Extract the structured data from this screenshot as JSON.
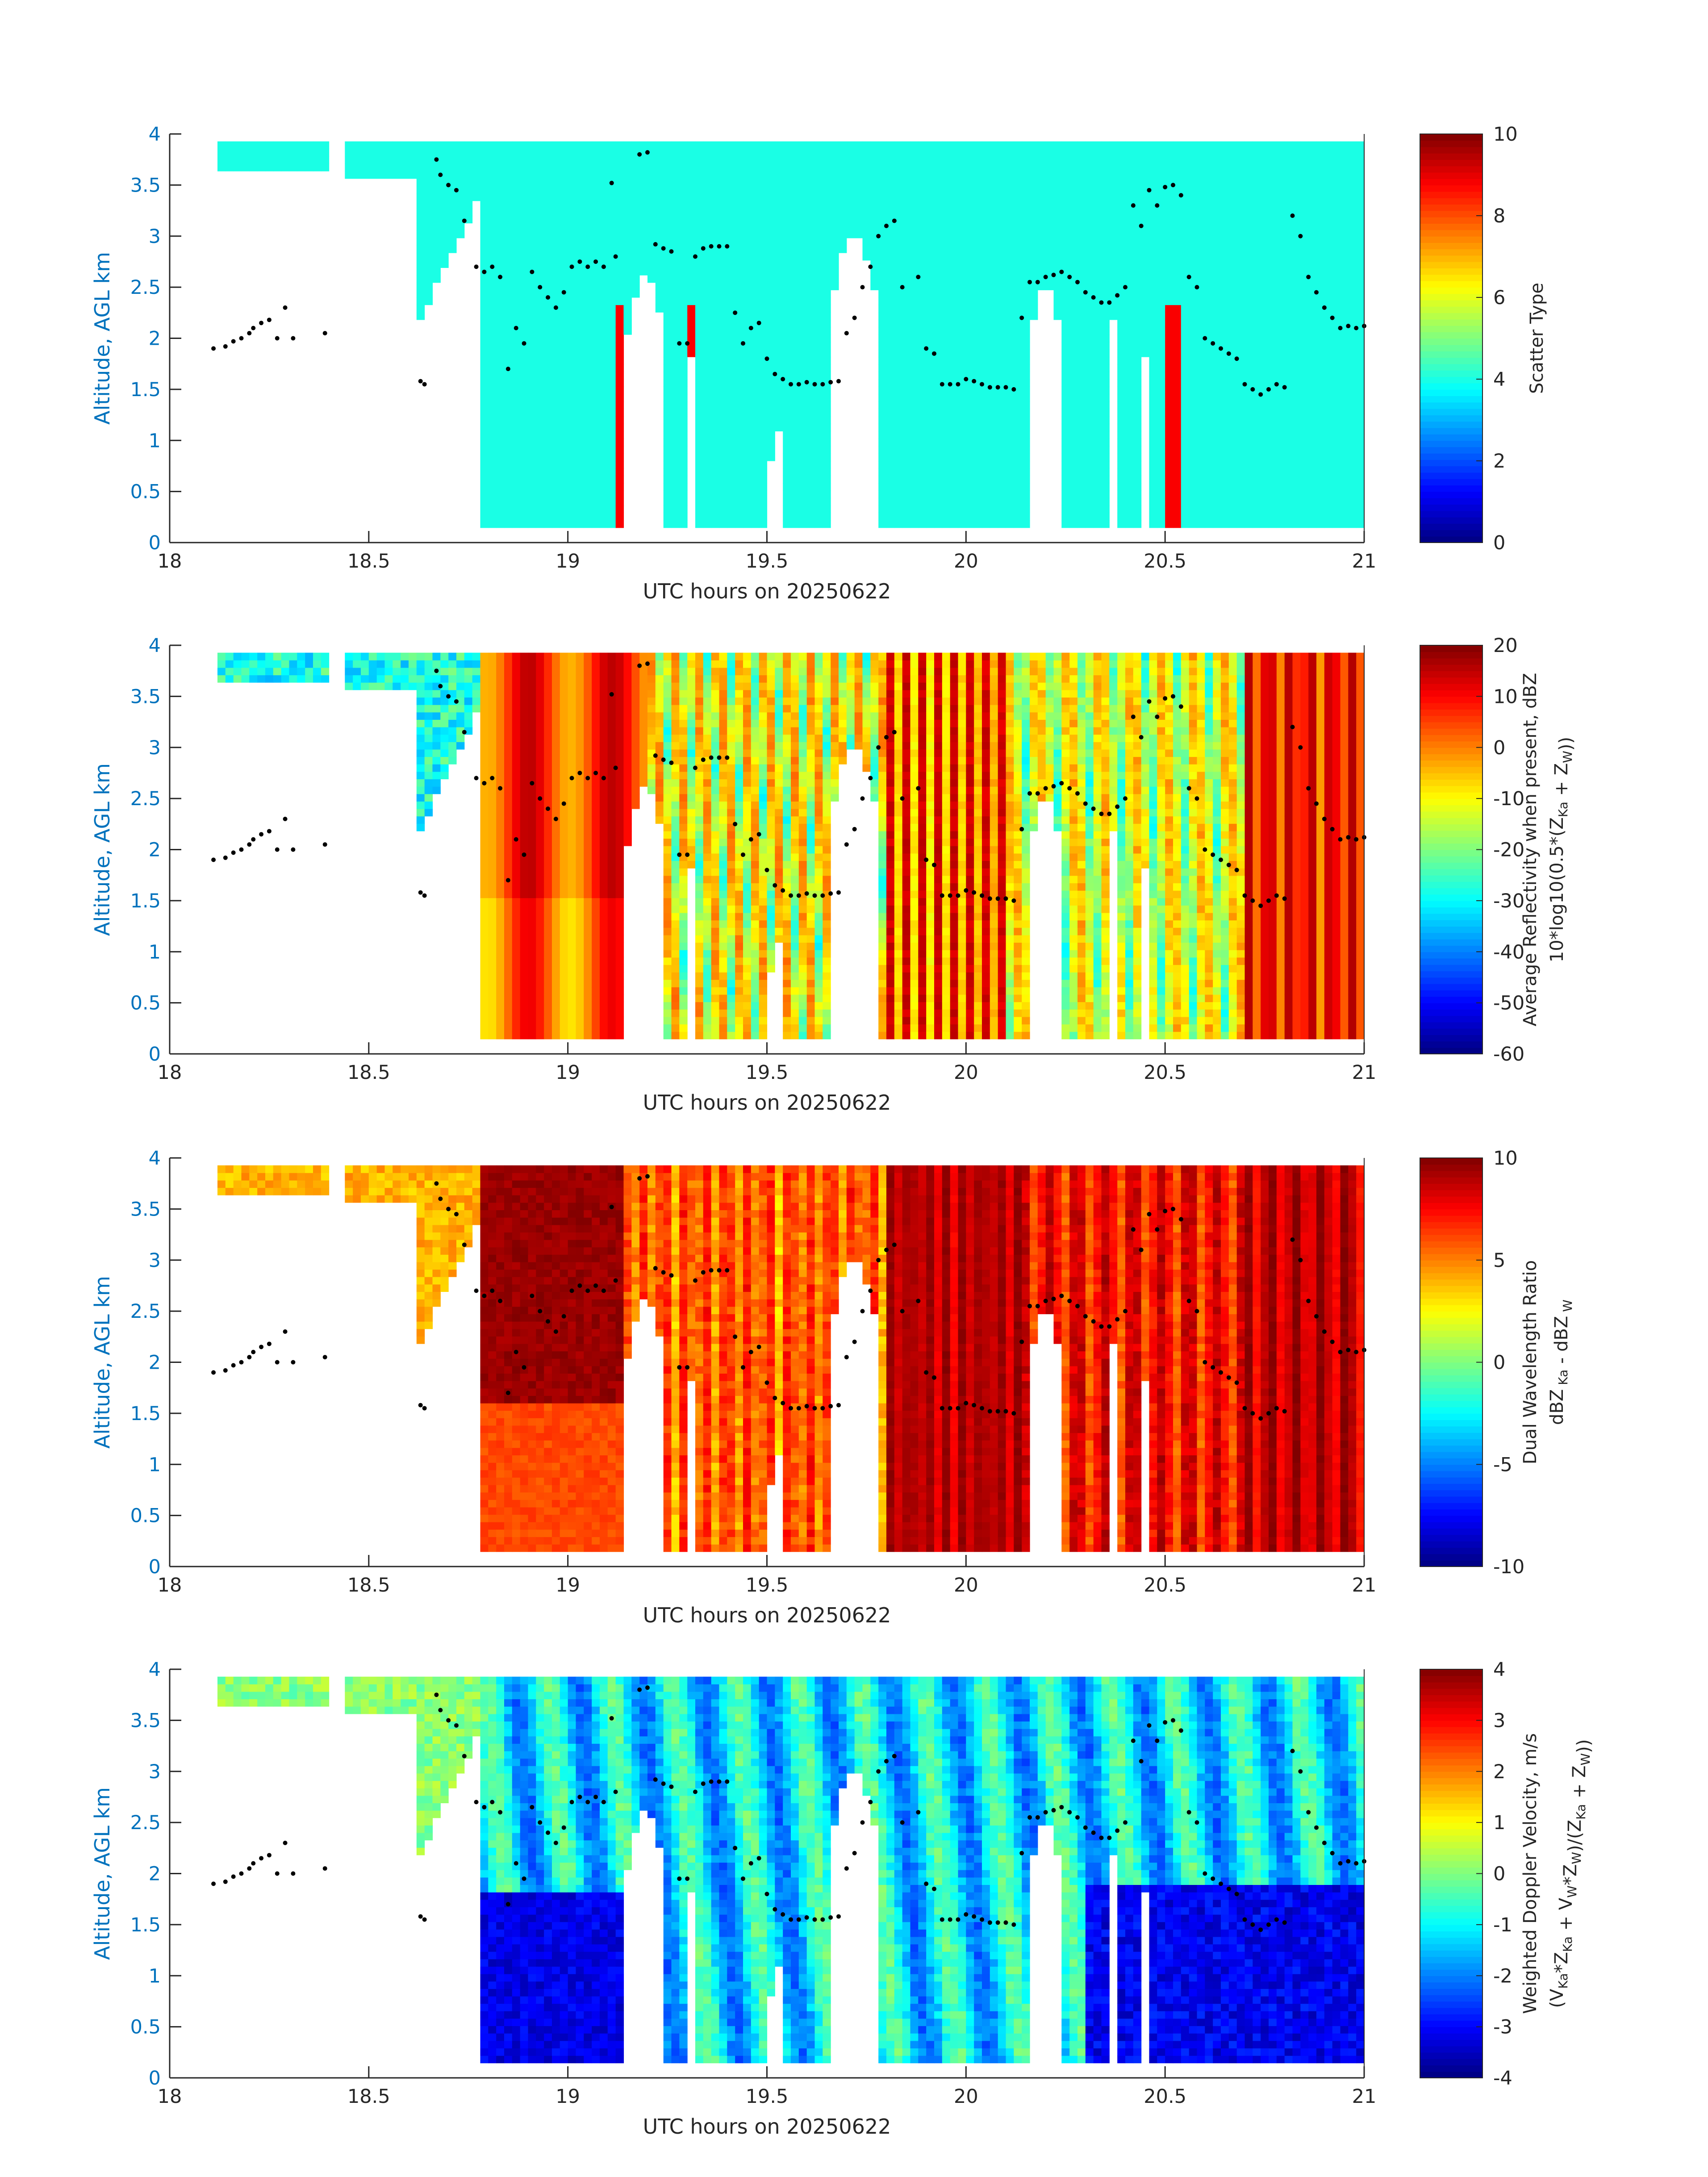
{
  "chart_data": [
    {
      "type": "heatmap",
      "xlabel": "UTC hours on 20250622",
      "ylabel": "Altitude, AGL km",
      "xlim": [
        18,
        21
      ],
      "ylim": [
        0,
        4
      ],
      "xticks": [
        "18",
        "18.5",
        "19",
        "19.5",
        "20",
        "20.5",
        "21"
      ],
      "yticks": [
        "0",
        "0.5",
        "1",
        "1.5",
        "2",
        "2.5",
        "3",
        "3.5",
        "4"
      ],
      "colorbar": {
        "label": "Scatter Type",
        "clim": [
          0,
          10
        ],
        "ticks": [
          "0",
          "2",
          "4",
          "6",
          "8",
          "10"
        ]
      },
      "colormap": "jet"
    },
    {
      "type": "heatmap",
      "xlabel": "UTC hours on 20250622",
      "ylabel": "Altitude, AGL km",
      "xlim": [
        18,
        21
      ],
      "ylim": [
        0,
        4
      ],
      "xticks": [
        "18",
        "18.5",
        "19",
        "19.5",
        "20",
        "20.5",
        "21"
      ],
      "yticks": [
        "0",
        "0.5",
        "1",
        "1.5",
        "2",
        "2.5",
        "3",
        "3.5",
        "4"
      ],
      "colorbar": {
        "label_line1": "Average Reflectivity when present, dBZ",
        "label_line2": "10*log10(0.5*(Z",
        "label_sub1": "Ka",
        "label_mid": " + Z",
        "label_sub2": "W",
        "label_end": "))",
        "clim": [
          -60,
          20
        ],
        "ticks": [
          "-60",
          "-50",
          "-40",
          "-30",
          "-20",
          "-10",
          "0",
          "10",
          "20"
        ]
      },
      "colormap": "jet"
    },
    {
      "type": "heatmap",
      "xlabel": "UTC hours on 20250622",
      "ylabel": "Altitude, AGL km",
      "xlim": [
        18,
        21
      ],
      "ylim": [
        0,
        4
      ],
      "xticks": [
        "18",
        "18.5",
        "19",
        "19.5",
        "20",
        "20.5",
        "21"
      ],
      "yticks": [
        "0",
        "0.5",
        "1",
        "1.5",
        "2",
        "2.5",
        "3",
        "3.5",
        "4"
      ],
      "colorbar": {
        "label_line1": "Dual Wavelength Ratio",
        "label_line2": "dBZ",
        "label_sub1": " Ka",
        "label_mid": " - dBZ",
        "label_sub2": " W",
        "label_end": "",
        "clim": [
          -10,
          10
        ],
        "ticks": [
          "-10",
          "-5",
          "0",
          "5",
          "10"
        ]
      },
      "colormap": "jet"
    },
    {
      "type": "heatmap",
      "xlabel": "UTC hours on 20250622",
      "ylabel": "Altitude, AGL km",
      "xlim": [
        18,
        21
      ],
      "ylim": [
        0,
        4
      ],
      "xticks": [
        "18",
        "18.5",
        "19",
        "19.5",
        "20",
        "20.5",
        "21"
      ],
      "yticks": [
        "0",
        "0.5",
        "1",
        "1.5",
        "2",
        "2.5",
        "3",
        "3.5",
        "4"
      ],
      "colorbar": {
        "label_line1": "Weighted Doppler Velocity, m/s",
        "label_line2": "(V",
        "label_sub1": "Ka",
        "label_mid": "*Z",
        "label_sub2": "Ka",
        "label_end": " + V",
        "label_sub3": "W",
        "label_end2": "*Z",
        "label_sub4": "W",
        "label_end3": ")/(Z",
        "label_sub5": "Ka",
        "label_end4": " + Z",
        "label_sub6": "W",
        "label_end5": "))",
        "clim": [
          -4,
          4
        ],
        "ticks": [
          "-4",
          "-3",
          "-2",
          "-1",
          "0",
          "1",
          "2",
          "3",
          "4"
        ]
      },
      "colormap": "jet"
    }
  ],
  "cloud_base_dots": {
    "times": [
      18.11,
      18.14,
      18.16,
      18.18,
      18.2,
      18.21,
      18.23,
      18.25,
      18.27,
      18.29,
      18.31,
      18.39,
      18.63,
      18.64,
      18.67,
      18.68,
      18.7,
      18.72,
      18.74,
      18.77,
      18.79,
      18.81,
      18.83,
      18.85,
      18.87,
      18.89,
      18.91,
      18.93,
      18.95,
      18.97,
      18.99,
      19.01,
      19.03,
      19.05,
      19.07,
      19.09,
      19.11,
      19.12,
      19.18,
      19.2,
      19.22,
      19.24,
      19.26,
      19.28,
      19.3,
      19.32,
      19.34,
      19.36,
      19.38,
      19.4,
      19.42,
      19.44,
      19.46,
      19.48,
      19.5,
      19.52,
      19.54,
      19.56,
      19.58,
      19.6,
      19.62,
      19.64,
      19.66,
      19.68,
      19.7,
      19.72,
      19.74,
      19.76,
      19.78,
      19.8,
      19.82,
      19.84,
      19.88,
      19.9,
      19.92,
      19.94,
      19.96,
      19.98,
      20.0,
      20.02,
      20.04,
      20.06,
      20.08,
      20.1,
      20.12,
      20.14,
      20.16,
      20.18,
      20.2,
      20.22,
      20.24,
      20.26,
      20.28,
      20.3,
      20.32,
      20.34,
      20.36,
      20.38,
      20.4,
      20.42,
      20.44,
      20.46,
      20.48,
      20.5,
      20.52,
      20.54,
      20.56,
      20.58,
      20.6,
      20.62,
      20.64,
      20.66,
      20.68,
      20.7,
      20.72,
      20.74,
      20.76,
      20.78,
      20.8,
      20.82,
      20.84,
      20.86,
      20.88,
      20.9,
      20.92,
      20.94,
      20.96,
      20.98,
      21.0
    ],
    "alts": [
      1.9,
      1.92,
      1.97,
      2.0,
      2.05,
      2.1,
      2.15,
      2.18,
      2.0,
      2.3,
      2.0,
      2.05,
      1.58,
      1.55,
      3.75,
      3.6,
      3.5,
      3.45,
      3.15,
      2.7,
      2.65,
      2.7,
      2.6,
      1.7,
      2.1,
      1.95,
      2.65,
      2.5,
      2.4,
      2.3,
      2.45,
      2.7,
      2.75,
      2.7,
      2.75,
      2.7,
      3.52,
      2.8,
      3.8,
      3.82,
      2.92,
      2.88,
      2.85,
      1.95,
      1.95,
      2.8,
      2.88,
      2.9,
      2.9,
      2.9,
      2.25,
      1.95,
      2.1,
      2.15,
      1.8,
      1.65,
      1.6,
      1.55,
      1.55,
      1.57,
      1.55,
      1.55,
      1.57,
      1.58,
      2.05,
      2.2,
      2.5,
      2.7,
      3.0,
      3.1,
      3.15,
      2.5,
      2.6,
      1.9,
      1.85,
      1.55,
      1.55,
      1.55,
      1.6,
      1.58,
      1.55,
      1.52,
      1.52,
      1.52,
      1.5,
      2.2,
      2.55,
      2.55,
      2.6,
      2.62,
      2.65,
      2.6,
      2.55,
      2.45,
      2.4,
      2.35,
      2.35,
      2.42,
      2.5,
      3.3,
      3.1,
      3.45,
      3.3,
      3.48,
      3.5,
      3.4,
      2.6,
      2.5,
      2.0,
      1.95,
      1.9,
      1.85,
      1.8,
      1.55,
      1.5,
      1.45,
      1.5,
      1.55,
      1.52,
      3.2,
      3.0,
      2.6,
      2.45,
      2.3,
      2.2,
      2.1,
      2.12,
      2.1,
      2.12
    ]
  }
}
